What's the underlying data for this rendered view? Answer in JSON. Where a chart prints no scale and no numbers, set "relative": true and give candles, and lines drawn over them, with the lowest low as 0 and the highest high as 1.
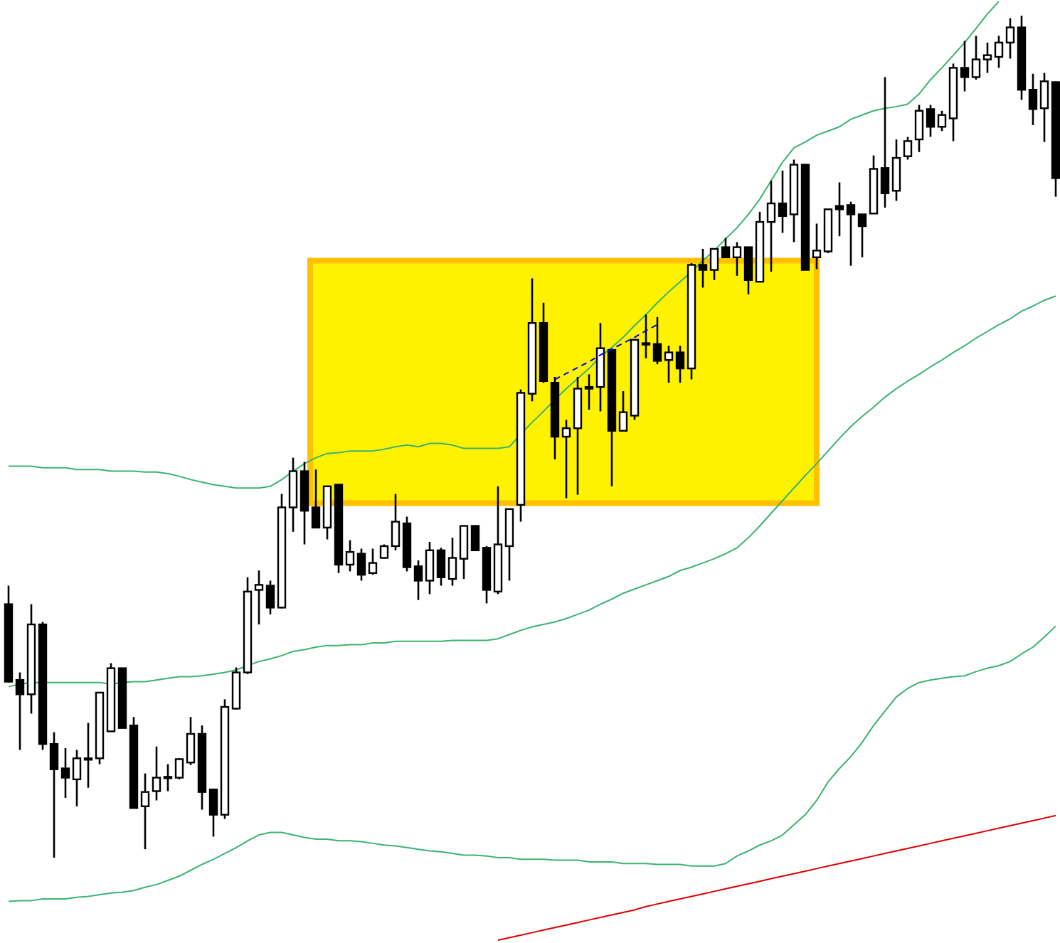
{
  "chart_data": {
    "type": "candlestick",
    "relative": true,
    "categories": [
      null,
      null,
      null,
      null,
      null,
      null,
      null,
      null,
      null,
      null,
      null,
      null,
      null,
      null,
      null,
      null,
      null,
      null,
      null,
      null,
      null,
      null,
      null,
      null,
      null,
      null,
      null,
      null,
      null,
      null,
      null,
      null,
      null,
      null,
      null,
      null,
      null,
      null,
      null,
      null,
      null,
      null,
      null,
      null,
      null,
      null,
      null,
      null,
      null,
      null,
      null,
      null,
      null,
      null,
      null,
      null,
      null,
      null,
      null,
      null,
      null,
      null,
      null,
      null,
      null,
      null,
      null,
      null,
      null,
      null,
      null,
      null,
      null,
      null,
      null,
      null,
      null,
      null,
      null,
      null,
      null,
      null,
      null,
      null,
      null,
      null,
      null,
      null,
      null,
      null,
      null,
      null,
      null
    ],
    "ohlc": [
      [
        0.301,
        0.323,
        0.208,
        0.209
      ],
      [
        0.211,
        0.22,
        0.128,
        0.194
      ],
      [
        0.194,
        0.301,
        0.171,
        0.277
      ],
      [
        0.277,
        0.28,
        0.128,
        0.135
      ],
      [
        0.135,
        0.149,
        0,
        0.105
      ],
      [
        0.106,
        0.13,
        0.071,
        0.095
      ],
      [
        0.093,
        0.128,
        0.061,
        0.118
      ],
      [
        0.118,
        0.16,
        0.083,
        0.117
      ],
      [
        0.118,
        0.196,
        0.111,
        0.196
      ],
      [
        0.15,
        0.231,
        0.15,
        0.225
      ],
      [
        0.225,
        0.225,
        0.154,
        0.154
      ],
      [
        0.157,
        0.167,
        0.059,
        0.059
      ],
      [
        0.061,
        0.1,
        0.01,
        0.078
      ],
      [
        0.079,
        0.132,
        0.068,
        0.095
      ],
      [
        0.095,
        0.111,
        0.079,
        0.096
      ],
      [
        0.095,
        0.118,
        0.093,
        0.117
      ],
      [
        0.113,
        0.167,
        0.11,
        0.147
      ],
      [
        0.147,
        0.157,
        0.057,
        0.078
      ],
      [
        0.081,
        0.081,
        0.025,
        0.051
      ],
      [
        0.051,
        0.188,
        0.046,
        0.179
      ],
      [
        0.177,
        0.226,
        0.176,
        0.22
      ],
      [
        0.22,
        0.333,
        0.218,
        0.316
      ],
      [
        0.318,
        0.341,
        0.277,
        0.324
      ],
      [
        0.323,
        0.329,
        0.289,
        0.297
      ],
      [
        0.297,
        0.432,
        0.296,
        0.416
      ],
      [
        0.416,
        0.475,
        0.387,
        0.459
      ],
      [
        0.459,
        0.47,
        0.372,
        0.412
      ],
      [
        0.416,
        0.461,
        0.392,
        0.392
      ],
      [
        0.392,
        0.441,
        0.378,
        0.441
      ],
      [
        0.443,
        0.443,
        0.338,
        0.348
      ],
      [
        0.348,
        0.377,
        0.34,
        0.363
      ],
      [
        0.361,
        0.367,
        0.329,
        0.336
      ],
      [
        0.338,
        0.367,
        0.336,
        0.35
      ],
      [
        0.356,
        0.372,
        0.355,
        0.37
      ],
      [
        0.37,
        0.432,
        0.365,
        0.399
      ],
      [
        0.397,
        0.405,
        0.34,
        0.345
      ],
      [
        0.346,
        0.353,
        0.306,
        0.329
      ],
      [
        0.329,
        0.375,
        0.313,
        0.365
      ],
      [
        0.365,
        0.368,
        0.323,
        0.333
      ],
      [
        0.331,
        0.38,
        0.323,
        0.356
      ],
      [
        0.355,
        0.394,
        0.331,
        0.394
      ],
      [
        0.394,
        0.395,
        0.365,
        0.365
      ],
      [
        0.368,
        0.37,
        0.302,
        0.318
      ],
      [
        0.316,
        0.441,
        0.313,
        0.372
      ],
      [
        0.37,
        0.414,
        0.329,
        0.414
      ],
      [
        0.419,
        0.556,
        0.399,
        0.552
      ],
      [
        0.551,
        0.688,
        0.542,
        0.635
      ],
      [
        0.635,
        0.659,
        0.564,
        0.566
      ],
      [
        0.564,
        0.571,
        0.473,
        0.5
      ],
      [
        0.5,
        0.52,
        0.427,
        0.51
      ],
      [
        0.51,
        0.571,
        0.431,
        0.557
      ],
      [
        0.559,
        0.574,
        0.532,
        0.557
      ],
      [
        0.559,
        0.635,
        0.53,
        0.605
      ],
      [
        0.603,
        0.603,
        0.441,
        0.507
      ],
      [
        0.507,
        0.554,
        0.507,
        0.529
      ],
      [
        0.525,
        0.615,
        0.52,
        0.615
      ],
      [
        0.611,
        0.645,
        0.593,
        0.61
      ],
      [
        0.61,
        0.642,
        0.586,
        0.59
      ],
      [
        0.591,
        0.608,
        0.564,
        0.6
      ],
      [
        0.6,
        0.608,
        0.564,
        0.581
      ],
      [
        0.581,
        0.706,
        0.568,
        0.704
      ],
      [
        0.704,
        0.723,
        0.677,
        0.698
      ],
      [
        0.698,
        0.723,
        0.686,
        0.723
      ],
      [
        0.725,
        0.736,
        0.713,
        0.713
      ],
      [
        0.713,
        0.731,
        0.691,
        0.725
      ],
      [
        0.725,
        0.725,
        0.669,
        0.686
      ],
      [
        0.684,
        0.767,
        0.684,
        0.755
      ],
      [
        0.755,
        0.804,
        0.696,
        0.777
      ],
      [
        0.777,
        0.816,
        0.742,
        0.762
      ],
      [
        0.764,
        0.829,
        0.731,
        0.823
      ],
      [
        0.823,
        0.823,
        0.698,
        0.698
      ],
      [
        0.713,
        0.753,
        0.699,
        0.721
      ],
      [
        0.72,
        0.77,
        0.718,
        0.77
      ],
      [
        0.774,
        0.802,
        0.738,
        0.77
      ],
      [
        0.775,
        0.779,
        0.703,
        0.764
      ],
      [
        0.764,
        0.764,
        0.713,
        0.75
      ],
      [
        0.765,
        0.834,
        0.765,
        0.818
      ],
      [
        0.819,
        0.927,
        0.772,
        0.789
      ],
      [
        0.792,
        0.853,
        0.78,
        0.831
      ],
      [
        0.833,
        0.856,
        0.829,
        0.851
      ],
      [
        0.853,
        0.894,
        0.838,
        0.887
      ],
      [
        0.889,
        0.894,
        0.856,
        0.868
      ],
      [
        0.868,
        0.887,
        0.863,
        0.882
      ],
      [
        0.878,
        0.943,
        0.851,
        0.938
      ],
      [
        0.938,
        0.97,
        0.91,
        0.927
      ],
      [
        0.927,
        0.976,
        0.924,
        0.948
      ],
      [
        0.948,
        0.968,
        0.932,
        0.953
      ],
      [
        0.951,
        0.976,
        0.938,
        0.968
      ],
      [
        0.968,
        0.997,
        0.949,
        0.986
      ],
      [
        0.986,
        1,
        0.9,
        0.912
      ],
      [
        0.912,
        0.931,
        0.87,
        0.889
      ],
      [
        0.89,
        0.932,
        0.85,
        0.922
      ],
      [
        0.921,
        0.922,
        0.785,
        0.807
      ]
    ],
    "series": [
      {
        "type": "line",
        "color": "#3cb371",
        "values": [
          0.465,
          0.465,
          0.465,
          0.463,
          0.463,
          0.463,
          0.461,
          0.461,
          0.461,
          0.459,
          0.459,
          0.459,
          0.458,
          0.458,
          0.456,
          0.453,
          0.449,
          0.446,
          0.443,
          0.441,
          0.439,
          0.439,
          0.439,
          0.441,
          0.449,
          0.459,
          0.468,
          0.475,
          0.48,
          0.481,
          0.483,
          0.483,
          0.483,
          0.485,
          0.488,
          0.49,
          0.488,
          0.492,
          0.492,
          0.49,
          0.486,
          0.486,
          0.486,
          0.486,
          0.488,
          0.503,
          0.517,
          0.53,
          0.544,
          0.557,
          0.569,
          0.581,
          0.595,
          0.606,
          0.618,
          0.632,
          0.645,
          0.659,
          0.672,
          0.684,
          0.696,
          0.709,
          0.721,
          0.735,
          0.748,
          0.764,
          0.782,
          0.804,
          0.826,
          0.843,
          0.85,
          0.858,
          0.863,
          0.868,
          0.877,
          0.882,
          0.887,
          0.89,
          0.892,
          0.895,
          0.907,
          0.924,
          0.938,
          0.953,
          0.968,
          0.985,
          1.002,
          1.017,
          null,
          null,
          null,
          null,
          null
        ]
      },
      {
        "type": "line",
        "color": "#3cb371",
        "values": [
          0.203,
          0.206,
          0.208,
          0.208,
          0.208,
          0.208,
          0.208,
          0.208,
          0.208,
          0.206,
          0.208,
          0.209,
          0.209,
          0.211,
          0.213,
          0.215,
          0.215,
          0.216,
          0.218,
          0.22,
          0.223,
          0.228,
          0.233,
          0.236,
          0.24,
          0.245,
          0.247,
          0.25,
          0.252,
          0.252,
          0.253,
          0.253,
          0.255,
          0.255,
          0.257,
          0.257,
          0.257,
          0.257,
          0.257,
          0.258,
          0.258,
          0.258,
          0.258,
          0.26,
          0.265,
          0.27,
          0.274,
          0.277,
          0.28,
          0.284,
          0.289,
          0.294,
          0.301,
          0.307,
          0.314,
          0.319,
          0.324,
          0.329,
          0.334,
          0.341,
          0.345,
          0.35,
          0.355,
          0.361,
          0.368,
          0.38,
          0.394,
          0.409,
          0.424,
          0.439,
          0.454,
          0.468,
          0.483,
          0.498,
          0.512,
          0.524,
          0.535,
          0.547,
          0.557,
          0.566,
          0.574,
          0.583,
          0.591,
          0.6,
          0.608,
          0.617,
          0.625,
          0.633,
          0.64,
          0.649,
          0.655,
          0.662,
          0.667
        ]
      },
      {
        "type": "line",
        "color": "#3cb371",
        "values": [
          -0.052,
          -0.051,
          -0.051,
          -0.049,
          -0.049,
          -0.049,
          -0.047,
          -0.046,
          -0.044,
          -0.042,
          -0.041,
          -0.039,
          -0.035,
          -0.032,
          -0.027,
          -0.022,
          -0.015,
          -0.008,
          -0.002,
          0.005,
          0.012,
          0.02,
          0.027,
          0.03,
          0.03,
          0.027,
          0.024,
          0.022,
          0.022,
          0.02,
          0.02,
          0.019,
          0.017,
          0.015,
          0.014,
          0.012,
          0.01,
          0.008,
          0.007,
          0.005,
          0.003,
          0.003,
          0.002,
          0,
          0,
          -0.002,
          -0.002,
          -0.002,
          -0.003,
          -0.003,
          -0.003,
          -0.005,
          -0.005,
          -0.005,
          -0.007,
          -0.007,
          -0.007,
          -0.008,
          -0.008,
          -0.008,
          -0.01,
          -0.01,
          -0.01,
          -0.007,
          0.002,
          0.008,
          0.015,
          0.02,
          0.027,
          0.039,
          0.051,
          0.068,
          0.09,
          0.106,
          0.12,
          0.137,
          0.157,
          0.174,
          0.191,
          0.201,
          0.208,
          0.211,
          0.213,
          0.215,
          0.216,
          0.221,
          0.225,
          0.228,
          0.233,
          0.242,
          0.25,
          0.262,
          0.275
        ]
      },
      {
        "type": "line",
        "color": "#e00000",
        "values": [
          null,
          null,
          null,
          null,
          null,
          null,
          null,
          null,
          null,
          null,
          null,
          null,
          null,
          null,
          null,
          null,
          null,
          null,
          null,
          null,
          null,
          null,
          null,
          null,
          null,
          null,
          null,
          null,
          null,
          null,
          null,
          null,
          null,
          null,
          null,
          null,
          null,
          null,
          null,
          null,
          null,
          null,
          null,
          -0.098,
          -0.095,
          -0.092,
          -0.089,
          -0.086,
          -0.083,
          -0.08,
          -0.077,
          -0.074,
          -0.071,
          -0.068,
          -0.065,
          -0.062,
          -0.058,
          -0.055,
          -0.052,
          -0.049,
          -0.046,
          -0.043,
          -0.04,
          -0.037,
          -0.034,
          -0.031,
          -0.028,
          -0.025,
          -0.022,
          -0.019,
          -0.016,
          -0.013,
          -0.01,
          -0.007,
          -0.004,
          -0.001,
          0.002,
          0.005,
          0.008,
          0.011,
          0.014,
          0.017,
          0.02,
          0.023,
          0.026,
          0.029,
          0.032,
          0.035,
          0.038,
          0.041,
          0.044,
          0.047,
          0.05
        ]
      },
      {
        "type": "line",
        "color": "#0000ff",
        "line_style": "dashed",
        "values": [
          null,
          null,
          null,
          null,
          null,
          null,
          null,
          null,
          null,
          null,
          null,
          null,
          null,
          null,
          null,
          null,
          null,
          null,
          null,
          null,
          null,
          null,
          null,
          null,
          null,
          null,
          null,
          null,
          null,
          null,
          null,
          null,
          null,
          null,
          null,
          null,
          null,
          null,
          null,
          null,
          null,
          null,
          null,
          null,
          null,
          null,
          null,
          null,
          0.568,
          0.575,
          0.582,
          0.589,
          0.597,
          0.604,
          0.611,
          0.618,
          0.626,
          0.633,
          null,
          null,
          null,
          null,
          null,
          null,
          null,
          null,
          null,
          null,
          null,
          null,
          null,
          null,
          null,
          null,
          null,
          null,
          null,
          null,
          null,
          null,
          null,
          null,
          null,
          null,
          null,
          null,
          null,
          null,
          null,
          null,
          null,
          null,
          null
        ]
      }
    ]
  }
}
